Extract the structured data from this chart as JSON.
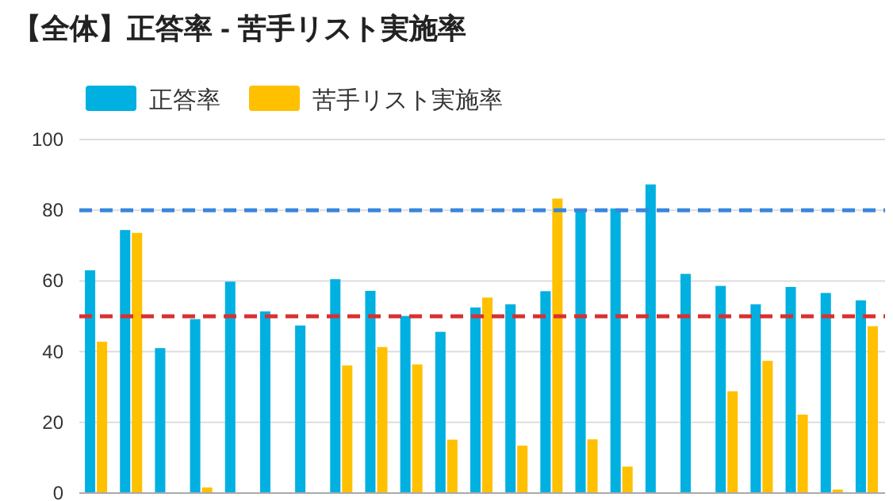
{
  "chart_data": {
    "type": "bar",
    "title": "【全体】正答率 - 苦手リスト実施率",
    "categories": [
      null,
      null,
      null,
      null,
      null,
      null,
      null,
      null,
      null,
      null,
      null,
      null,
      null,
      null,
      null,
      null,
      null,
      null,
      null,
      null,
      null,
      null,
      null
    ],
    "series": [
      {
        "name": "正答率",
        "color": "#00b0e0",
        "values": [
          63.0,
          74.4,
          41.0,
          49.2,
          59.8,
          51.4,
          47.4,
          60.5,
          57.2,
          50.1,
          45.6,
          52.5,
          53.4,
          57.1,
          79.7,
          80.5,
          87.3,
          62.0,
          58.6,
          53.4,
          58.3,
          56.6,
          54.5
        ]
      },
      {
        "name": "苦手リスト実施率",
        "color": "#ffc000",
        "values": [
          42.8,
          73.6,
          null,
          1.6,
          null,
          null,
          null,
          36.1,
          41.3,
          36.4,
          15.1,
          55.3,
          13.4,
          83.3,
          15.2,
          7.5,
          null,
          null,
          28.8,
          37.4,
          22.2,
          1.0,
          47.2
        ]
      }
    ],
    "ylim": [
      0,
      100
    ],
    "yticks": [
      0,
      20,
      40,
      60,
      80,
      100
    ],
    "grid": "y",
    "legend": "top left",
    "tick_labels": "y",
    "ref_lines": [
      {
        "axis": "y",
        "value": 80,
        "color": "#3a86dc",
        "line_style": "dashed"
      },
      {
        "axis": "y",
        "value": 50,
        "color": "#d93030",
        "line_style": "dashed"
      }
    ]
  }
}
